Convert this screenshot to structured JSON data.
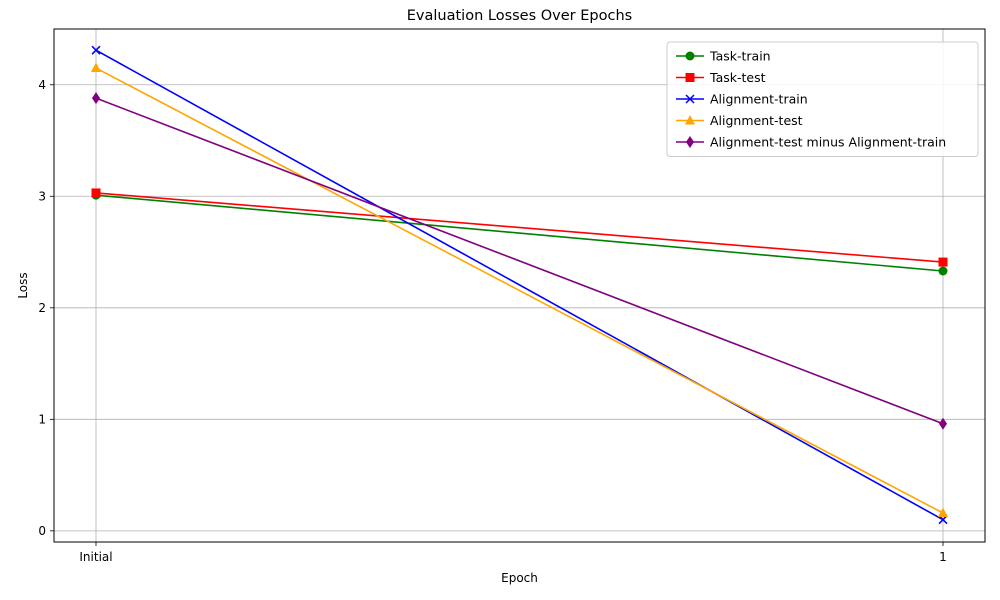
{
  "chart_data": {
    "type": "line",
    "title": "Evaluation Losses Over Epochs",
    "xlabel": "Epoch",
    "ylabel": "Loss",
    "categories": [
      "Initial",
      "1"
    ],
    "ylim": [
      -0.1,
      4.5
    ],
    "yticks": [
      0,
      1,
      2,
      3,
      4
    ],
    "grid": true,
    "legend_position": "top-right",
    "series": [
      {
        "name": "Task-train",
        "values": [
          3.01,
          2.33
        ],
        "color": "#008000",
        "marker": "circle"
      },
      {
        "name": "Task-test",
        "values": [
          3.03,
          2.41
        ],
        "color": "#ff0000",
        "marker": "square"
      },
      {
        "name": "Alignment-train",
        "values": [
          4.31,
          0.1
        ],
        "color": "#0000ff",
        "marker": "x"
      },
      {
        "name": "Alignment-test",
        "values": [
          4.15,
          0.16
        ],
        "color": "#ffa500",
        "marker": "triangle"
      },
      {
        "name": "Alignment-test minus Alignment-train",
        "values": [
          3.88,
          0.96
        ],
        "color": "#800080",
        "marker": "diamond"
      }
    ]
  }
}
